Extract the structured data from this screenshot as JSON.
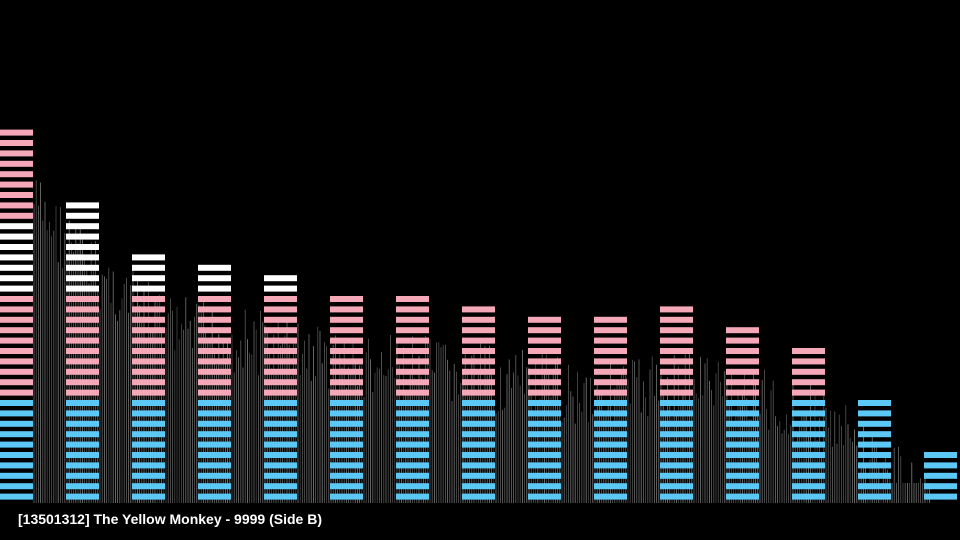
{
  "now_playing": {
    "title": "[13501312] The Yellow Monkey - 9999 (Side B)"
  },
  "visualizer": {
    "band_levels": [
      36,
      29,
      24,
      23,
      22,
      20,
      20,
      19,
      18,
      18,
      19,
      17,
      15,
      10,
      5
    ],
    "blue_segments": 10,
    "pink_segments": 10,
    "colors": {
      "background": "#000000",
      "low": "#5bc8f5",
      "mid": "#f5a8b8",
      "high": "#ffffff",
      "waveform": "#9a9a9a"
    }
  }
}
